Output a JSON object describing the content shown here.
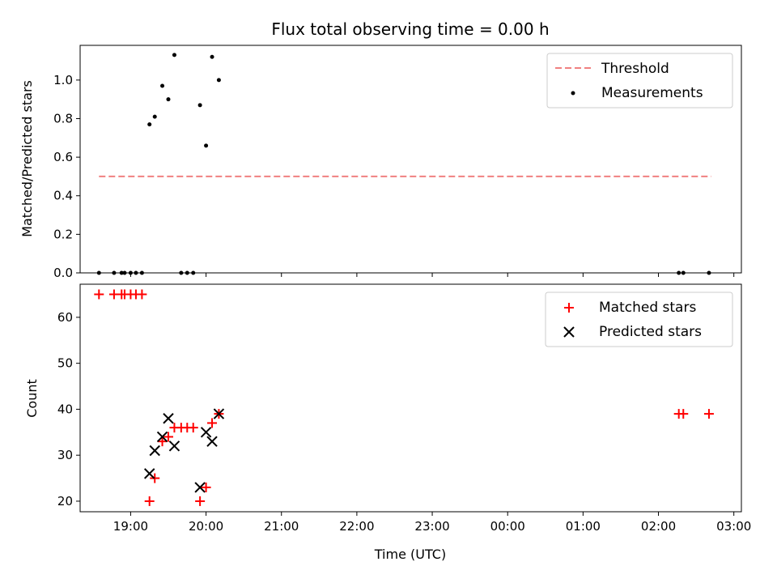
{
  "figure": {
    "title": "Flux total observing time = 0.00 h"
  },
  "chart_data": [
    {
      "type": "scatter",
      "ylabel": "Matched/Predicted stars",
      "xlabel": "",
      "xlim": [
        18.33,
        27.1
      ],
      "ylim": [
        0.0,
        1.18
      ],
      "yticks": [
        0.0,
        0.2,
        0.4,
        0.6,
        0.8,
        1.0
      ],
      "yticklabels": [
        "0.0",
        "0.2",
        "0.4",
        "0.6",
        "0.8",
        "1.0"
      ],
      "legend_position": "top-right",
      "threshold": {
        "name": "Threshold",
        "value": 0.5,
        "x_range": [
          18.58,
          26.7
        ],
        "color": "#f08080"
      },
      "series": [
        {
          "name": "Measurements",
          "marker": "dot",
          "color": "#000000",
          "x": [
            18.58,
            18.78,
            18.88,
            18.92,
            19.0,
            19.07,
            19.15,
            19.25,
            19.32,
            19.42,
            19.5,
            19.58,
            19.67,
            19.75,
            19.83,
            19.92,
            20.0,
            20.08,
            20.17,
            26.27,
            26.33,
            26.67
          ],
          "y": [
            0.0,
            0.0,
            0.0,
            0.0,
            0.0,
            0.0,
            0.0,
            0.77,
            0.81,
            0.97,
            0.9,
            1.13,
            0.0,
            0.0,
            0.0,
            0.87,
            0.66,
            1.12,
            1.0,
            0.0,
            0.0,
            0.0
          ]
        }
      ]
    },
    {
      "type": "scatter",
      "ylabel": "Count",
      "xlabel": "Time (UTC)",
      "xlim": [
        18.33,
        27.1
      ],
      "ylim": [
        17.7,
        67.2
      ],
      "yticks": [
        20,
        30,
        40,
        50,
        60
      ],
      "yticklabels": [
        "20",
        "30",
        "40",
        "50",
        "60"
      ],
      "xticks": [
        19,
        20,
        21,
        22,
        23,
        24,
        25,
        26,
        27
      ],
      "xticklabels": [
        "19:00",
        "20:00",
        "21:00",
        "22:00",
        "23:00",
        "00:00",
        "01:00",
        "02:00",
        "03:00"
      ],
      "legend_position": "top-right",
      "series": [
        {
          "name": "Matched stars",
          "marker": "plus",
          "color": "#ff0000",
          "x": [
            18.58,
            18.78,
            18.88,
            18.92,
            19.0,
            19.07,
            19.15,
            19.25,
            19.32,
            19.42,
            19.5,
            19.58,
            19.67,
            19.75,
            19.83,
            19.92,
            20.0,
            20.08,
            20.17,
            26.27,
            26.33,
            26.67
          ],
          "y": [
            65,
            65,
            65,
            65,
            65,
            65,
            65,
            20,
            25,
            33,
            34,
            36,
            36,
            36,
            36,
            20,
            23,
            37,
            39,
            39,
            39,
            39
          ]
        },
        {
          "name": "Predicted stars",
          "marker": "x",
          "color": "#000000",
          "x": [
            19.25,
            19.32,
            19.42,
            19.5,
            19.58,
            19.92,
            20.0,
            20.08,
            20.17
          ],
          "y": [
            26,
            31,
            34,
            38,
            32,
            23,
            35,
            33,
            39
          ]
        }
      ]
    }
  ]
}
